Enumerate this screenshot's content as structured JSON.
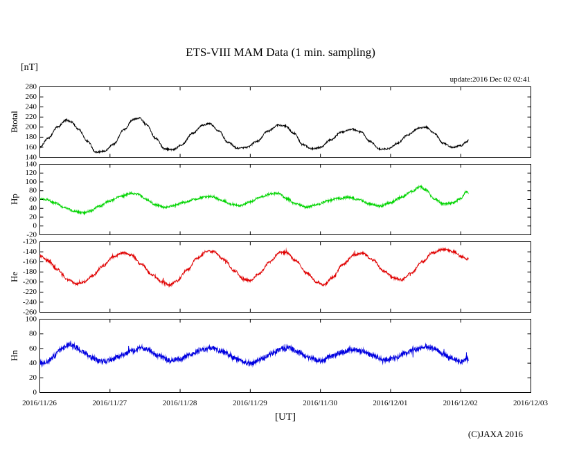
{
  "title": "ETS-VIII MAM Data (1 min. sampling)",
  "y_unit": "[nT]",
  "update_text": "update:2016 Dec 02 02:41",
  "copyright": "(C)JAXA 2016",
  "x_axis": {
    "label": "[UT]",
    "ticks": [
      "2016/11/26",
      "2016/11/27",
      "2016/11/28",
      "2016/11/29",
      "2016/11/30",
      "2016/12/01",
      "2016/12/02",
      "2016/12/03"
    ]
  },
  "chart_data": [
    {
      "type": "line",
      "name": "Btotal",
      "ylabel": "Btotal",
      "color": "#000000",
      "ylim": [
        140,
        280
      ],
      "ytick": 20,
      "x_range_days": [
        0,
        7
      ],
      "data_end_day": 6.11,
      "noise": 1.6,
      "anchors": [
        [
          0,
          160
        ],
        [
          0.12,
          178
        ],
        [
          0.25,
          200
        ],
        [
          0.38,
          214
        ],
        [
          0.45,
          210
        ],
        [
          0.55,
          196
        ],
        [
          0.68,
          172
        ],
        [
          0.8,
          150
        ],
        [
          0.92,
          152
        ],
        [
          1.05,
          166
        ],
        [
          1.2,
          195
        ],
        [
          1.33,
          215
        ],
        [
          1.42,
          218
        ],
        [
          1.52,
          205
        ],
        [
          1.65,
          178
        ],
        [
          1.78,
          157
        ],
        [
          1.9,
          155
        ],
        [
          2.02,
          165
        ],
        [
          2.18,
          188
        ],
        [
          2.32,
          204
        ],
        [
          2.42,
          207
        ],
        [
          2.55,
          193
        ],
        [
          2.68,
          170
        ],
        [
          2.82,
          158
        ],
        [
          2.95,
          160
        ],
        [
          3.1,
          172
        ],
        [
          3.25,
          192
        ],
        [
          3.4,
          204
        ],
        [
          3.5,
          202
        ],
        [
          3.62,
          188
        ],
        [
          3.75,
          165
        ],
        [
          3.88,
          157
        ],
        [
          4.0,
          160
        ],
        [
          4.15,
          175
        ],
        [
          4.3,
          190
        ],
        [
          4.45,
          196
        ],
        [
          4.58,
          190
        ],
        [
          4.7,
          172
        ],
        [
          4.85,
          156
        ],
        [
          4.97,
          157
        ],
        [
          5.1,
          168
        ],
        [
          5.25,
          185
        ],
        [
          5.4,
          198
        ],
        [
          5.5,
          200
        ],
        [
          5.62,
          188
        ],
        [
          5.75,
          168
        ],
        [
          5.88,
          160
        ],
        [
          6.0,
          163
        ],
        [
          6.08,
          170
        ],
        [
          6.11,
          174
        ]
      ]
    },
    {
      "type": "line",
      "name": "Hp",
      "ylabel": "Hp",
      "color": "#00d400",
      "ylim": [
        -20,
        140
      ],
      "ytick": 20,
      "x_range_days": [
        0,
        7
      ],
      "data_end_day": 6.11,
      "noise": 2.4,
      "anchors": [
        [
          0,
          63
        ],
        [
          0.1,
          60
        ],
        [
          0.22,
          52
        ],
        [
          0.35,
          42
        ],
        [
          0.5,
          33
        ],
        [
          0.62,
          30
        ],
        [
          0.72,
          34
        ],
        [
          0.85,
          45
        ],
        [
          1.0,
          57
        ],
        [
          1.15,
          67
        ],
        [
          1.3,
          74
        ],
        [
          1.4,
          72
        ],
        [
          1.52,
          60
        ],
        [
          1.65,
          48
        ],
        [
          1.78,
          42
        ],
        [
          1.9,
          46
        ],
        [
          2.05,
          53
        ],
        [
          2.2,
          60
        ],
        [
          2.35,
          66
        ],
        [
          2.45,
          67
        ],
        [
          2.6,
          58
        ],
        [
          2.72,
          50
        ],
        [
          2.85,
          46
        ],
        [
          3.0,
          55
        ],
        [
          3.15,
          66
        ],
        [
          3.3,
          73
        ],
        [
          3.4,
          74
        ],
        [
          3.52,
          62
        ],
        [
          3.65,
          50
        ],
        [
          3.8,
          43
        ],
        [
          3.95,
          48
        ],
        [
          4.1,
          57
        ],
        [
          4.25,
          62
        ],
        [
          4.4,
          65
        ],
        [
          4.55,
          60
        ],
        [
          4.7,
          50
        ],
        [
          4.85,
          45
        ],
        [
          5.0,
          53
        ],
        [
          5.15,
          65
        ],
        [
          5.3,
          78
        ],
        [
          5.42,
          89
        ],
        [
          5.5,
          82
        ],
        [
          5.62,
          62
        ],
        [
          5.75,
          50
        ],
        [
          5.88,
          52
        ],
        [
          6.0,
          62
        ],
        [
          6.08,
          78
        ],
        [
          6.11,
          74
        ]
      ]
    },
    {
      "type": "line",
      "name": "He",
      "ylabel": "He",
      "color": "#e00000",
      "ylim": [
        -260,
        -120
      ],
      "ytick": 20,
      "x_range_days": [
        0,
        7
      ],
      "data_end_day": 6.11,
      "noise": 2.2,
      "spikes": {
        "prob": 0.005,
        "amp": 9
      },
      "anchors": [
        [
          0,
          -148
        ],
        [
          0.12,
          -158
        ],
        [
          0.25,
          -175
        ],
        [
          0.4,
          -195
        ],
        [
          0.52,
          -204
        ],
        [
          0.62,
          -200
        ],
        [
          0.75,
          -188
        ],
        [
          0.9,
          -168
        ],
        [
          1.05,
          -150
        ],
        [
          1.18,
          -142
        ],
        [
          1.3,
          -146
        ],
        [
          1.45,
          -165
        ],
        [
          1.6,
          -186
        ],
        [
          1.75,
          -200
        ],
        [
          1.85,
          -206
        ],
        [
          1.95,
          -198
        ],
        [
          2.1,
          -176
        ],
        [
          2.25,
          -152
        ],
        [
          2.38,
          -139
        ],
        [
          2.48,
          -140
        ],
        [
          2.62,
          -155
        ],
        [
          2.78,
          -178
        ],
        [
          2.9,
          -194
        ],
        [
          3.0,
          -197
        ],
        [
          3.12,
          -184
        ],
        [
          3.28,
          -160
        ],
        [
          3.42,
          -141
        ],
        [
          3.52,
          -142
        ],
        [
          3.65,
          -158
        ],
        [
          3.8,
          -182
        ],
        [
          3.95,
          -200
        ],
        [
          4.05,
          -206
        ],
        [
          4.18,
          -190
        ],
        [
          4.32,
          -165
        ],
        [
          4.48,
          -146
        ],
        [
          4.6,
          -143
        ],
        [
          4.75,
          -156
        ],
        [
          4.9,
          -178
        ],
        [
          5.05,
          -192
        ],
        [
          5.15,
          -196
        ],
        [
          5.3,
          -182
        ],
        [
          5.45,
          -160
        ],
        [
          5.6,
          -142
        ],
        [
          5.75,
          -135
        ],
        [
          5.9,
          -140
        ],
        [
          6.02,
          -150
        ],
        [
          6.11,
          -155
        ]
      ]
    },
    {
      "type": "line",
      "name": "Hn",
      "ylabel": "Hn",
      "color": "#0000e0",
      "ylim": [
        0,
        100
      ],
      "ytick": 20,
      "x_range_days": [
        0,
        7
      ],
      "data_end_day": 6.11,
      "noise": 3.2,
      "spikes": {
        "prob": 0.012,
        "amp": 10
      },
      "anchors": [
        [
          0,
          40
        ],
        [
          0.1,
          42
        ],
        [
          0.2,
          50
        ],
        [
          0.32,
          60
        ],
        [
          0.42,
          66
        ],
        [
          0.52,
          62
        ],
        [
          0.62,
          55
        ],
        [
          0.75,
          47
        ],
        [
          0.88,
          42
        ],
        [
          1.0,
          44
        ],
        [
          1.15,
          50
        ],
        [
          1.3,
          56
        ],
        [
          1.45,
          61
        ],
        [
          1.55,
          58
        ],
        [
          1.7,
          50
        ],
        [
          1.85,
          44
        ],
        [
          2.0,
          46
        ],
        [
          2.15,
          52
        ],
        [
          2.3,
          58
        ],
        [
          2.45,
          61
        ],
        [
          2.6,
          56
        ],
        [
          2.75,
          48
        ],
        [
          2.9,
          42
        ],
        [
          3.0,
          39
        ],
        [
          3.15,
          45
        ],
        [
          3.3,
          53
        ],
        [
          3.45,
          59
        ],
        [
          3.55,
          61
        ],
        [
          3.7,
          55
        ],
        [
          3.85,
          47
        ],
        [
          4.0,
          43
        ],
        [
          4.15,
          49
        ],
        [
          4.3,
          55
        ],
        [
          4.45,
          59
        ],
        [
          4.6,
          56
        ],
        [
          4.75,
          50
        ],
        [
          4.9,
          45
        ],
        [
          5.05,
          47
        ],
        [
          5.2,
          53
        ],
        [
          5.35,
          59
        ],
        [
          5.5,
          63
        ],
        [
          5.62,
          60
        ],
        [
          5.75,
          52
        ],
        [
          5.9,
          46
        ],
        [
          6.02,
          42
        ],
        [
          6.11,
          45
        ]
      ]
    }
  ]
}
